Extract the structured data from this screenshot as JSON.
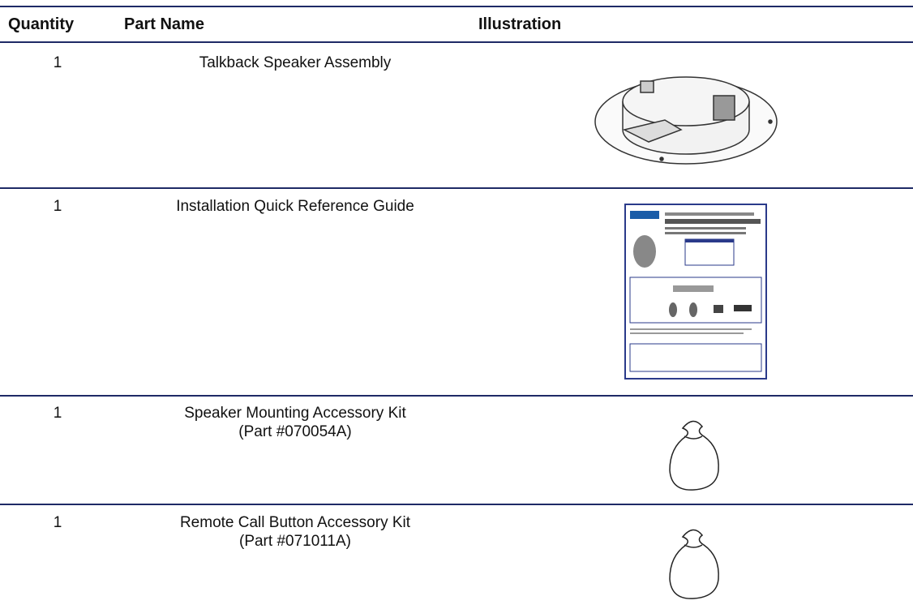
{
  "table": {
    "headers": [
      "Quantity",
      "Part Name",
      "Illustration"
    ],
    "rows": [
      {
        "quantity": "1",
        "part_name": [
          "Talkback Speaker Assembly"
        ]
      },
      {
        "quantity": "1",
        "part_name": [
          "Installation Quick Reference Guide"
        ]
      },
      {
        "quantity": "1",
        "part_name": [
          "Speaker Mounting Accessory Kit",
          "(Part #070054A)"
        ]
      },
      {
        "quantity": "1",
        "part_name": [
          "Remote Call Button Accessory Kit",
          "(Part #071011A)"
        ]
      }
    ]
  }
}
